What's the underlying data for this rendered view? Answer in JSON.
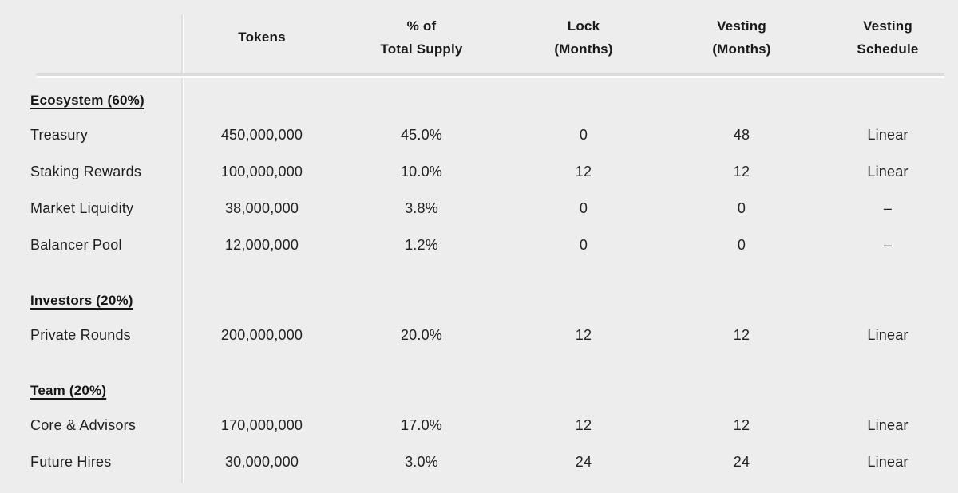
{
  "colors": {
    "background": "#ededed",
    "text": "#1f1f1f",
    "divider": "#dbdbdb",
    "divider_highlight": "#ffffff"
  },
  "chart_data": {
    "type": "table",
    "columns": [
      {
        "id": "label",
        "lines": [
          "",
          ""
        ]
      },
      {
        "id": "tokens",
        "lines": [
          "Tokens",
          ""
        ]
      },
      {
        "id": "pct",
        "lines": [
          "% of",
          "Total Supply"
        ]
      },
      {
        "id": "lock",
        "lines": [
          "Lock",
          "(Months)"
        ]
      },
      {
        "id": "vesting",
        "lines": [
          "Vesting",
          "(Months)"
        ]
      },
      {
        "id": "schedule",
        "lines": [
          "Vesting",
          "Schedule"
        ]
      }
    ],
    "sections": [
      {
        "title": "Ecosystem (60%)",
        "rows": [
          {
            "label": "Treasury",
            "tokens": "450,000,000",
            "pct": "45.0%",
            "lock": "0",
            "vesting": "48",
            "schedule": "Linear"
          },
          {
            "label": "Staking Rewards",
            "tokens": "100,000,000",
            "pct": "10.0%",
            "lock": "12",
            "vesting": "12",
            "schedule": "Linear"
          },
          {
            "label": "Market Liquidity",
            "tokens": "38,000,000",
            "pct": "3.8%",
            "lock": "0",
            "vesting": "0",
            "schedule": "–"
          },
          {
            "label": "Balancer Pool",
            "tokens": "12,000,000",
            "pct": "1.2%",
            "lock": "0",
            "vesting": "0",
            "schedule": "–"
          }
        ]
      },
      {
        "title": "Investors (20%)",
        "rows": [
          {
            "label": "Private Rounds",
            "tokens": "200,000,000",
            "pct": "20.0%",
            "lock": "12",
            "vesting": "12",
            "schedule": "Linear"
          }
        ]
      },
      {
        "title": "Team (20%)",
        "rows": [
          {
            "label": "Core & Advisors",
            "tokens": "170,000,000",
            "pct": "17.0%",
            "lock": "12",
            "vesting": "12",
            "schedule": "Linear"
          },
          {
            "label": "Future Hires",
            "tokens": "30,000,000",
            "pct": "3.0%",
            "lock": "24",
            "vesting": "24",
            "schedule": "Linear"
          }
        ]
      }
    ]
  }
}
